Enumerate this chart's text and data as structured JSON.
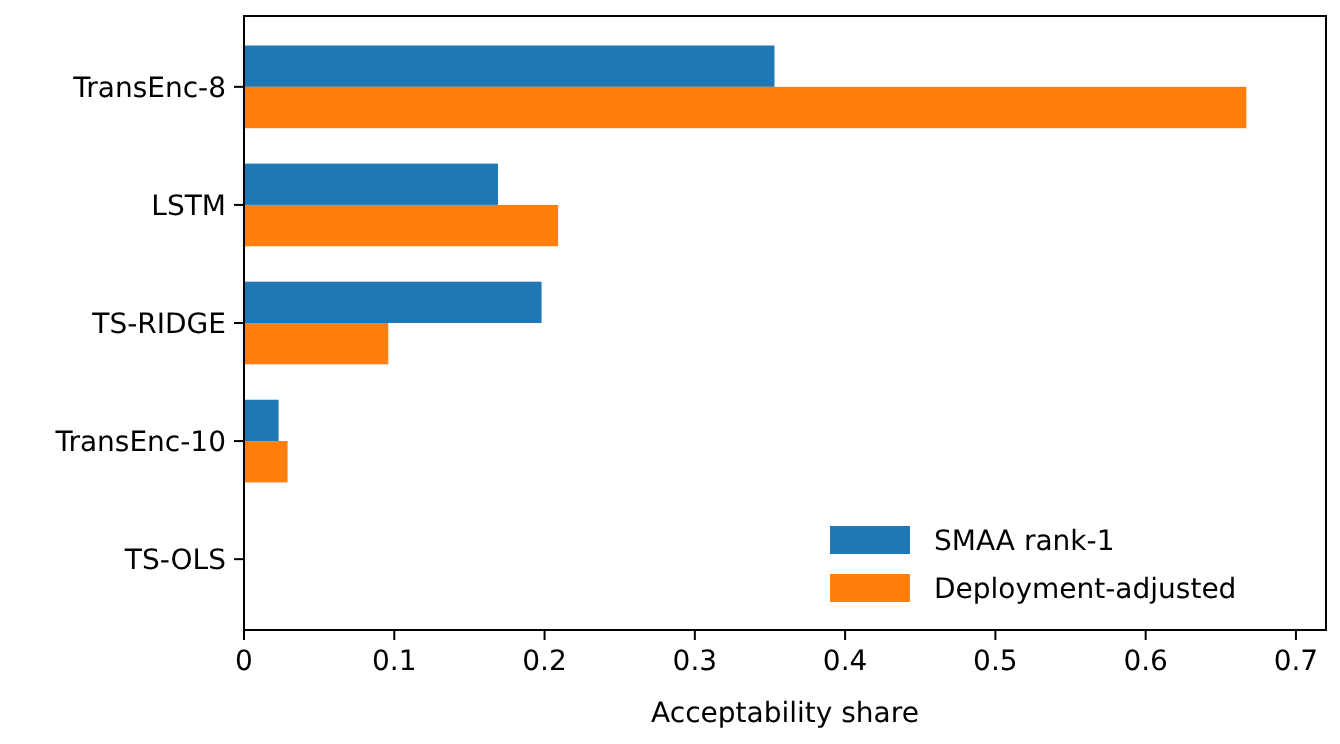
{
  "chart_data": {
    "type": "bar",
    "orientation": "horizontal",
    "xlabel": "Acceptability share",
    "categories": [
      "TransEnc-8",
      "LSTM",
      "TS-RIDGE",
      "TransEnc-10",
      "TS-OLS"
    ],
    "series": [
      {
        "name": "SMAA rank-1",
        "color": "#1f77b4",
        "values": [
          0.353,
          0.169,
          0.198,
          0.023,
          0
        ]
      },
      {
        "name": "Deployment-adjusted",
        "color": "#ff7f0e",
        "values": [
          0.667,
          0.209,
          0.096,
          0.029,
          0
        ]
      }
    ],
    "xlim": [
      0,
      0.72
    ],
    "xticks": [
      0,
      0.1,
      0.2,
      0.3,
      0.4,
      0.5,
      0.6,
      0.7
    ],
    "grid": false,
    "legend": "bottom right"
  }
}
